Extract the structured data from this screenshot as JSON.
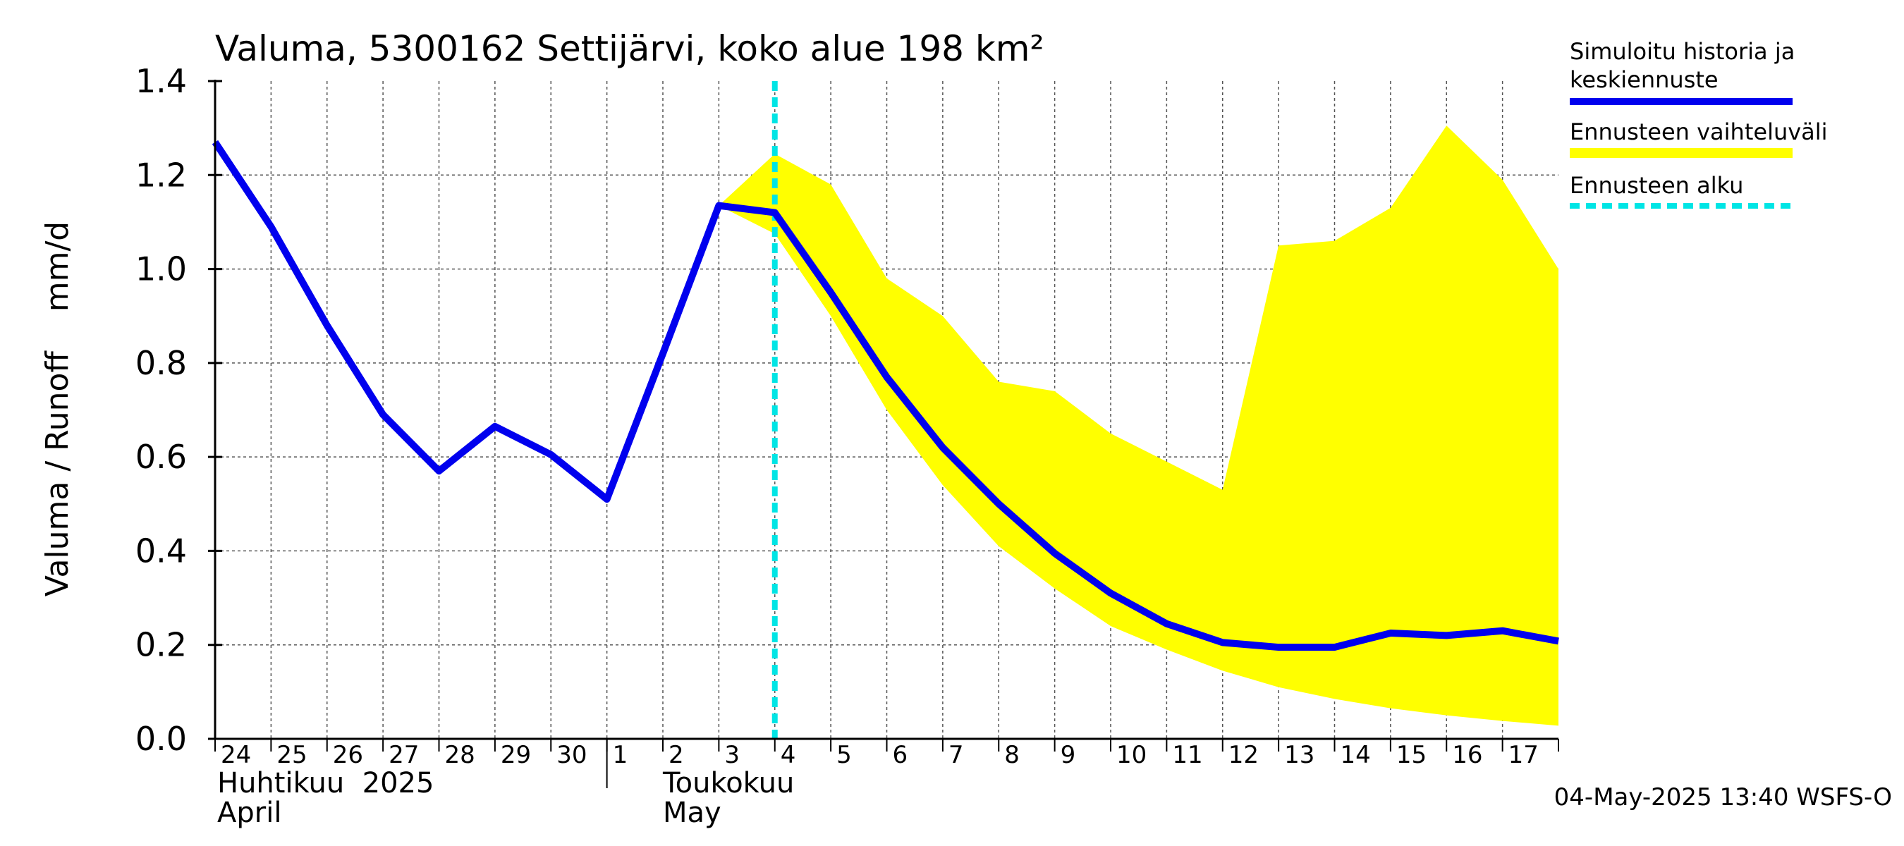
{
  "chart_data": {
    "type": "line",
    "title": "Valuma, 5300162 Settijärvi, koko alue 198 km²",
    "ylabel": "Valuma / Runoff    mm/d",
    "ylim": [
      0,
      1.4
    ],
    "yticks": [
      "0.0",
      "0.2",
      "0.4",
      "0.6",
      "0.8",
      "1.0",
      "1.2",
      "1.4"
    ],
    "x_day_labels": [
      "24",
      "25",
      "26",
      "27",
      "28",
      "29",
      "30",
      "1",
      "2",
      "3",
      "4",
      "5",
      "6",
      "7",
      "8",
      "9",
      "10",
      "11",
      "12",
      "13",
      "14",
      "15",
      "16",
      "17"
    ],
    "x_dates": [
      "2025-04-24",
      "2025-04-25",
      "2025-04-26",
      "2025-04-27",
      "2025-04-28",
      "2025-04-29",
      "2025-04-30",
      "2025-05-01",
      "2025-05-02",
      "2025-05-03",
      "2025-05-04",
      "2025-05-05",
      "2025-05-06",
      "2025-05-07",
      "2025-05-08",
      "2025-05-09",
      "2025-05-10",
      "2025-05-11",
      "2025-05-12",
      "2025-05-13",
      "2025-05-14",
      "2025-05-15",
      "2025-05-16",
      "2025-05-17",
      "2025-05-18"
    ],
    "month_labels": [
      {
        "line1": "Huhtikuu  2025",
        "line2": "April"
      },
      {
        "line1": "Toukokuu",
        "line2": "May"
      }
    ],
    "series": [
      {
        "name": "Simuloitu historia ja keskiennuste",
        "color": "#0000ee",
        "x": [
          "2025-04-24",
          "2025-04-25",
          "2025-04-26",
          "2025-04-27",
          "2025-04-28",
          "2025-04-29",
          "2025-04-30",
          "2025-05-01",
          "2025-05-02",
          "2025-05-03",
          "2025-05-04",
          "2025-05-05",
          "2025-05-06",
          "2025-05-07",
          "2025-05-08",
          "2025-05-09",
          "2025-05-10",
          "2025-05-11",
          "2025-05-12",
          "2025-05-13",
          "2025-05-14",
          "2025-05-15",
          "2025-05-16",
          "2025-05-17",
          "2025-05-18"
        ],
        "values": [
          1.27,
          1.09,
          0.88,
          0.69,
          0.57,
          0.665,
          0.605,
          0.51,
          0.82,
          1.135,
          1.12,
          0.95,
          0.77,
          0.62,
          0.5,
          0.395,
          0.31,
          0.245,
          0.205,
          0.195,
          0.195,
          0.225,
          0.22,
          0.23,
          0.208
        ]
      },
      {
        "name": "Ennusteen vaihteluväli",
        "color": "#ffff00",
        "x": [
          "2025-05-03",
          "2025-05-04",
          "2025-05-05",
          "2025-05-06",
          "2025-05-07",
          "2025-05-08",
          "2025-05-09",
          "2025-05-10",
          "2025-05-11",
          "2025-05-12",
          "2025-05-13",
          "2025-05-14",
          "2025-05-15",
          "2025-05-16",
          "2025-05-17",
          "2025-05-18"
        ],
        "upper": [
          1.135,
          1.245,
          1.18,
          0.98,
          0.9,
          0.76,
          0.74,
          0.65,
          0.59,
          0.53,
          1.05,
          1.06,
          1.13,
          1.305,
          1.19,
          1.0
        ],
        "lower": [
          1.135,
          1.075,
          0.9,
          0.7,
          0.54,
          0.41,
          0.32,
          0.24,
          0.19,
          0.145,
          0.11,
          0.085,
          0.065,
          0.05,
          0.038,
          0.028
        ]
      }
    ],
    "forecast_start": "2025-05-04",
    "legend": {
      "placement": "right",
      "items": [
        {
          "line1": "Simuloitu historia ja",
          "line2": "keskiennuste",
          "color": "#0000ee",
          "style": "solid"
        },
        {
          "line1": "Ennusteen vaihteluväli",
          "line2": "",
          "color": "#ffff00",
          "style": "band"
        },
        {
          "line1": "Ennusteen alku",
          "line2": "",
          "color": "#00e5e5",
          "style": "dashed"
        }
      ]
    },
    "grid": true,
    "footer": "04-May-2025 13:40 WSFS-O"
  }
}
